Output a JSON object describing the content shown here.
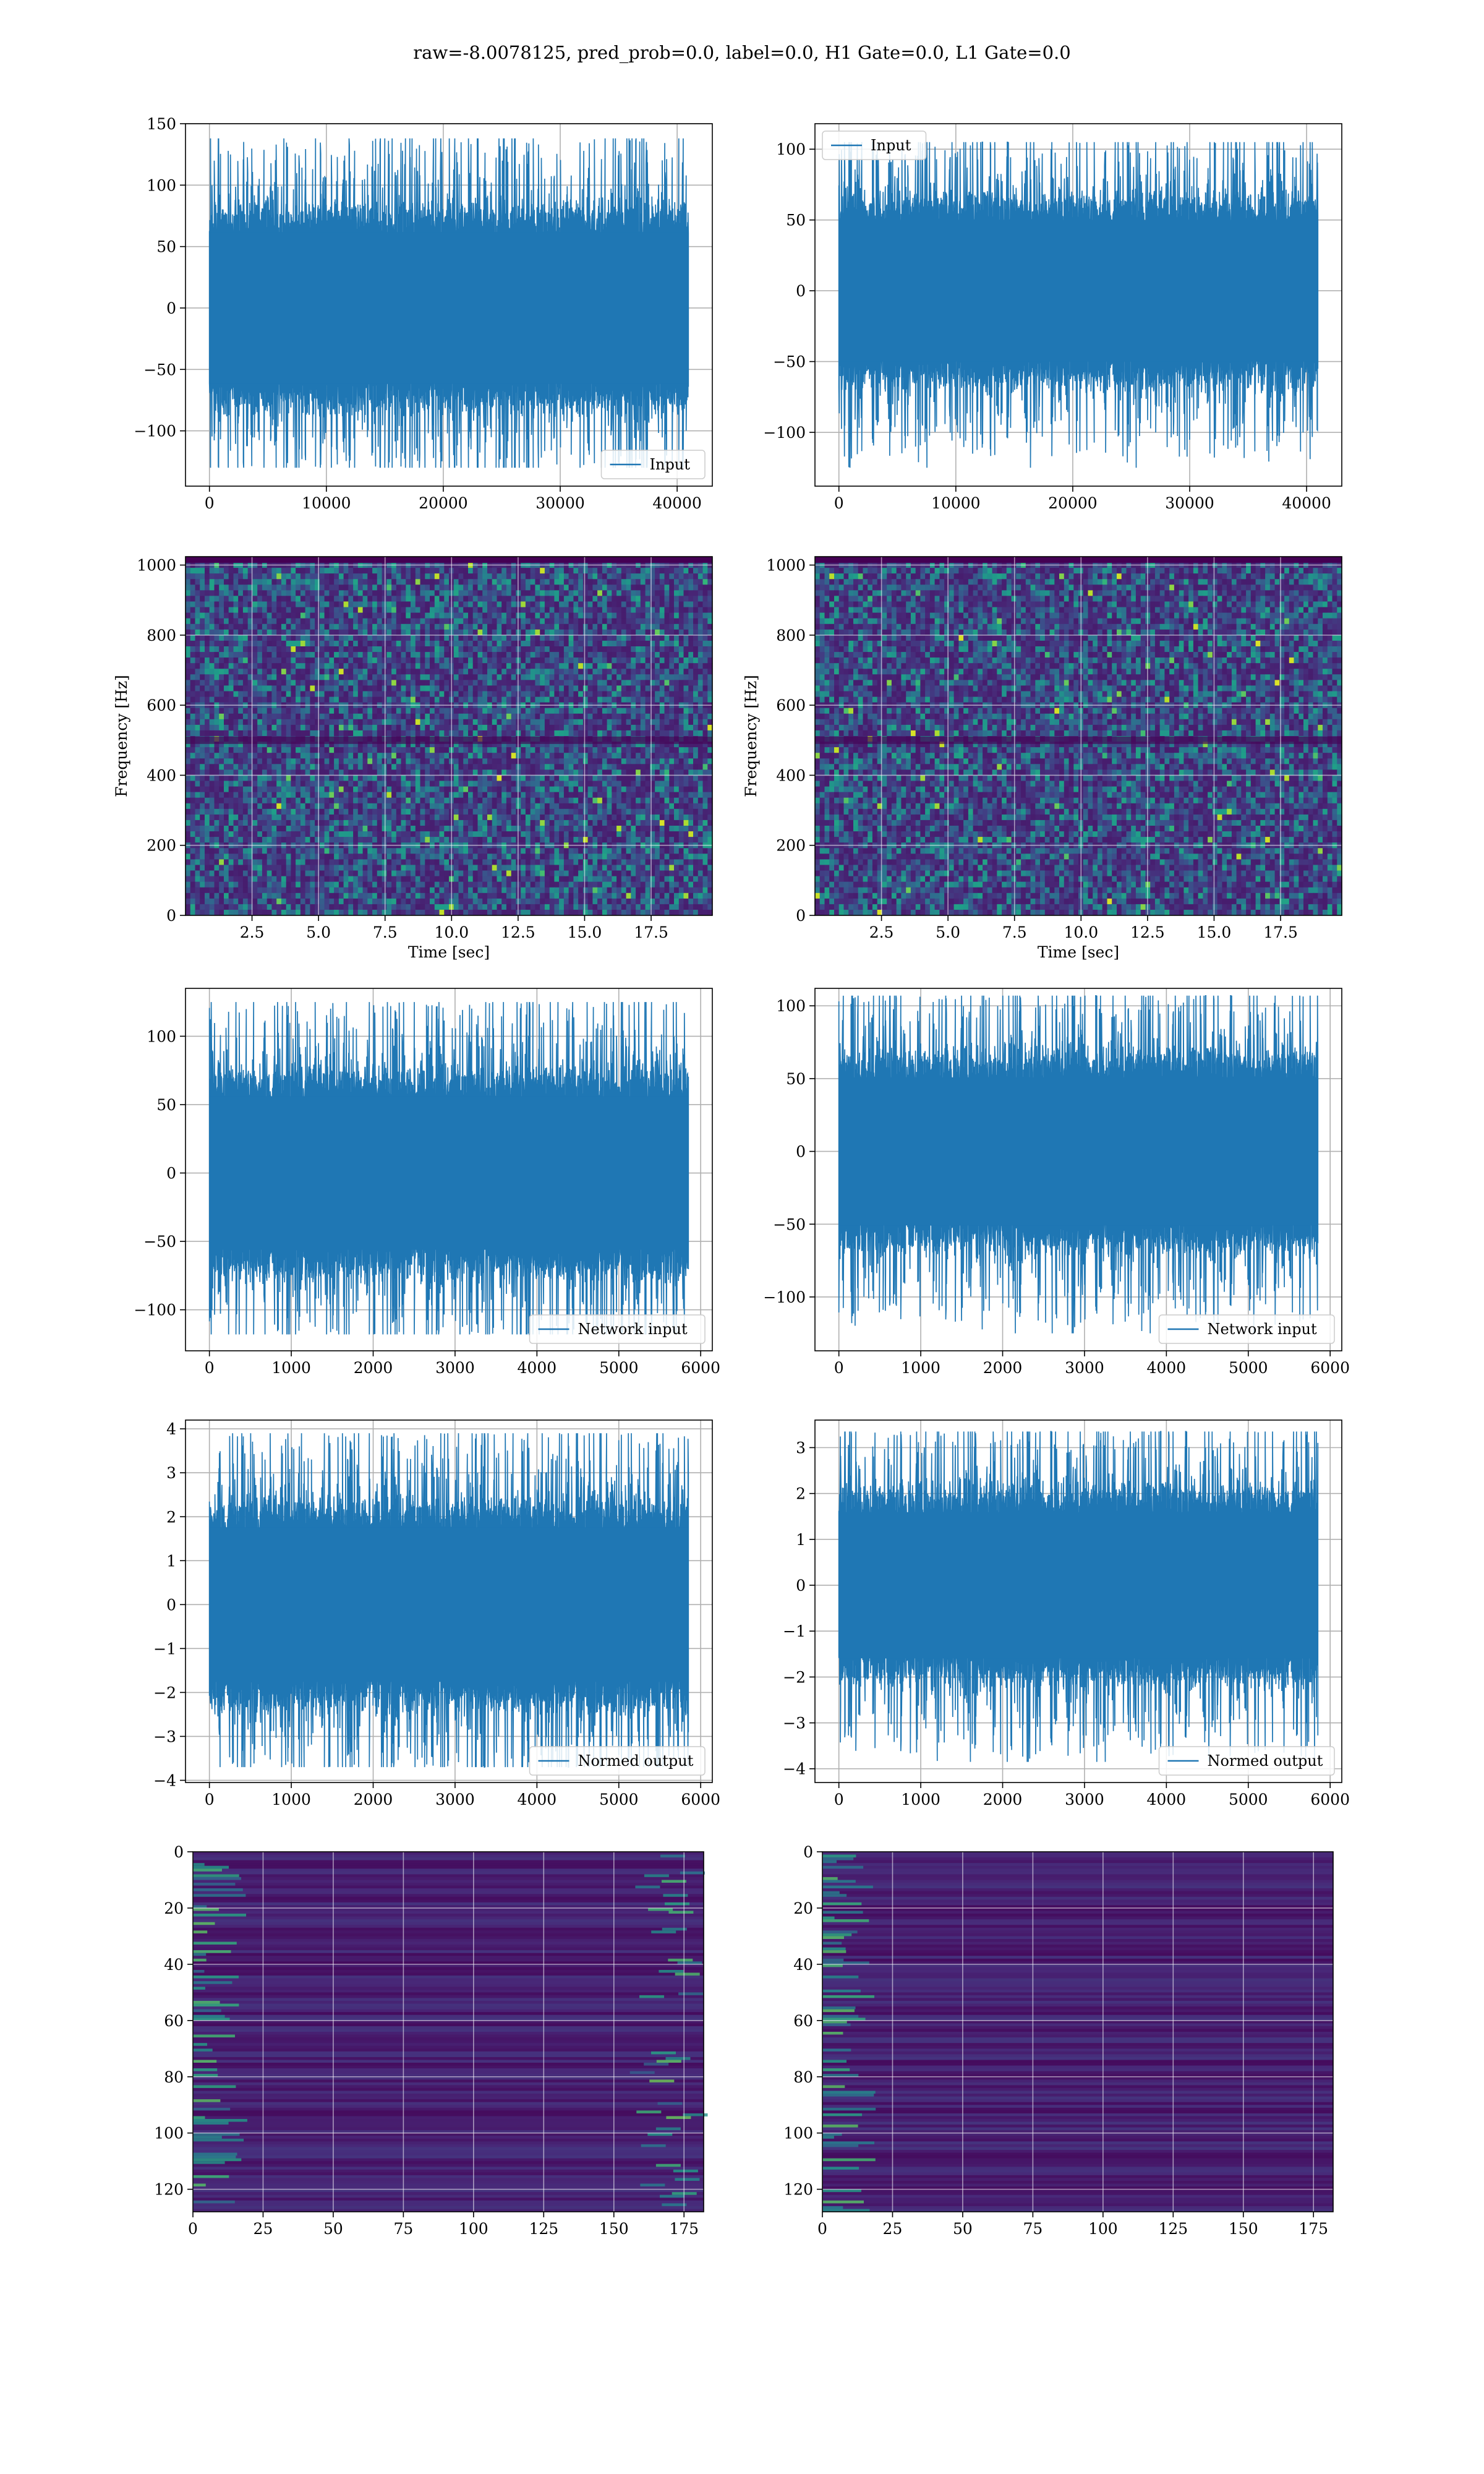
{
  "figure": {
    "title": "raw=-8.0078125, pred_prob=0.0, label=0.0, H1 Gate=0.0, L1 Gate=0.0",
    "line_color": "#1f77b4"
  },
  "chart_data": [
    {
      "id": "h1-input",
      "type": "line",
      "series": [
        {
          "name": "Input",
          "values_range": [
            -130,
            138
          ]
        }
      ],
      "x_range": [
        0,
        40960
      ],
      "xlim": [
        -2048,
        43008
      ],
      "ylim": [
        -145,
        150
      ],
      "xticks": [
        0,
        10000,
        20000,
        30000,
        40000
      ],
      "yticks": [
        -100,
        -50,
        0,
        50,
        100,
        150
      ],
      "legend": {
        "label": "Input",
        "loc": "lower-right"
      },
      "grid": true
    },
    {
      "id": "l1-input",
      "type": "line",
      "series": [
        {
          "name": "Input",
          "values_range": [
            -125,
            105
          ]
        }
      ],
      "x_range": [
        0,
        40960
      ],
      "xlim": [
        -2048,
        43008
      ],
      "ylim": [
        -138,
        118
      ],
      "xticks": [
        0,
        10000,
        20000,
        30000,
        40000
      ],
      "yticks": [
        -100,
        -50,
        0,
        50,
        100
      ],
      "legend": {
        "label": "Input",
        "loc": "upper-left"
      },
      "grid": true
    },
    {
      "id": "h1-spectrogram",
      "type": "heatmap",
      "xlim": [
        0,
        19.8
      ],
      "ylim": [
        0,
        1024
      ],
      "xticks": [
        2.5,
        5.0,
        7.5,
        10.0,
        12.5,
        15.0,
        17.5
      ],
      "xtick_labels": [
        "2.5",
        "5.0",
        "7.5",
        "10.0",
        "12.5",
        "15.0",
        "17.5"
      ],
      "yticks": [
        0,
        200,
        400,
        600,
        800,
        1000
      ],
      "xlabel": "Time [sec]",
      "ylabel": "Frequency [Hz]",
      "colormap": "viridis",
      "grid": true
    },
    {
      "id": "l1-spectrogram",
      "type": "heatmap",
      "xlim": [
        0,
        19.8
      ],
      "ylim": [
        0,
        1024
      ],
      "xticks": [
        2.5,
        5.0,
        7.5,
        10.0,
        12.5,
        15.0,
        17.5
      ],
      "xtick_labels": [
        "2.5",
        "5.0",
        "7.5",
        "10.0",
        "12.5",
        "15.0",
        "17.5"
      ],
      "yticks": [
        0,
        200,
        400,
        600,
        800,
        1000
      ],
      "xlabel": "Time [sec]",
      "ylabel": "Frequency [Hz]",
      "colormap": "viridis",
      "grid": true
    },
    {
      "id": "h1-network-input",
      "type": "line",
      "series": [
        {
          "name": "Network input",
          "values_range": [
            -118,
            125
          ]
        }
      ],
      "x_range": [
        0,
        5850
      ],
      "xlim": [
        -292,
        6142
      ],
      "ylim": [
        -130,
        135
      ],
      "xticks": [
        0,
        1000,
        2000,
        3000,
        4000,
        5000,
        6000
      ],
      "yticks": [
        -100,
        -50,
        0,
        50,
        100
      ],
      "legend": {
        "label": "Network input",
        "loc": "lower-right"
      },
      "grid": true
    },
    {
      "id": "l1-network-input",
      "type": "line",
      "series": [
        {
          "name": "Network input",
          "values_range": [
            -125,
            107
          ]
        }
      ],
      "x_range": [
        0,
        5850
      ],
      "xlim": [
        -292,
        6142
      ],
      "ylim": [
        -137,
        112
      ],
      "xticks": [
        0,
        1000,
        2000,
        3000,
        4000,
        5000,
        6000
      ],
      "yticks": [
        -100,
        -50,
        0,
        50,
        100
      ],
      "legend": {
        "label": "Network input",
        "loc": "lower-right"
      },
      "grid": true
    },
    {
      "id": "h1-normed-output",
      "type": "line",
      "series": [
        {
          "name": "Normed output",
          "values_range": [
            -3.7,
            3.9
          ]
        }
      ],
      "x_range": [
        0,
        5850
      ],
      "xlim": [
        -292,
        6142
      ],
      "ylim": [
        -4.05,
        4.2
      ],
      "xticks": [
        0,
        1000,
        2000,
        3000,
        4000,
        5000,
        6000
      ],
      "yticks": [
        -4,
        -3,
        -2,
        -1,
        0,
        1,
        2,
        3,
        4
      ],
      "legend": {
        "label": "Normed output",
        "loc": "lower-right"
      },
      "grid": true
    },
    {
      "id": "l1-normed-output",
      "type": "line",
      "series": [
        {
          "name": "Normed output",
          "values_range": [
            -3.85,
            3.35
          ]
        }
      ],
      "x_range": [
        0,
        5850
      ],
      "xlim": [
        -292,
        6142
      ],
      "ylim": [
        -4.3,
        3.6
      ],
      "xticks": [
        0,
        1000,
        2000,
        3000,
        4000,
        5000,
        6000
      ],
      "yticks": [
        -4,
        -3,
        -2,
        -1,
        0,
        1,
        2,
        3
      ],
      "legend": {
        "label": "Normed output",
        "loc": "lower-right"
      },
      "grid": true
    },
    {
      "id": "h1-feature-map",
      "type": "heatmap",
      "xlim": [
        0,
        182
      ],
      "ylim": [
        0,
        128
      ],
      "y_inverted": true,
      "xticks": [
        0,
        25,
        50,
        75,
        100,
        125,
        150,
        175
      ],
      "yticks": [
        0,
        20,
        40,
        60,
        80,
        100,
        120
      ],
      "colormap": "viridis",
      "grid": true
    },
    {
      "id": "l1-feature-map",
      "type": "heatmap",
      "xlim": [
        0,
        182
      ],
      "ylim": [
        0,
        128
      ],
      "y_inverted": true,
      "xticks": [
        0,
        25,
        50,
        75,
        100,
        125,
        150,
        175
      ],
      "yticks": [
        0,
        20,
        40,
        60,
        80,
        100,
        120
      ],
      "colormap": "viridis",
      "grid": true
    }
  ]
}
